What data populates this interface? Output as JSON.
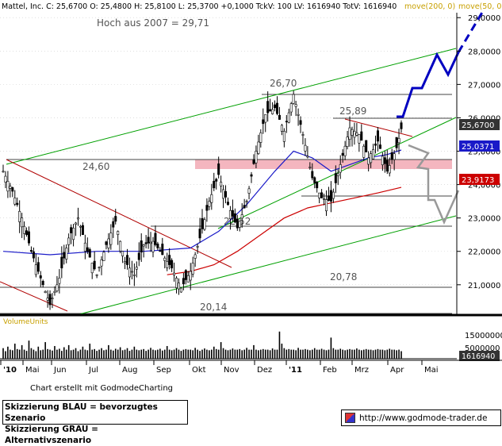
{
  "header": {
    "text": "Mattel, Inc. C: 25,6700 O: 25,4800 H: 25,8100 L: 25,3700 +0,1000 TckV: 100 LV: 1616940 TotV: 1616940",
    "ma_long": "move(200, 0)",
    "ma_short": "move(50, 0)"
  },
  "annotations": {
    "high2007": "Hoch aus 2007  =  29,71",
    "l2670": "26,70",
    "l2589": "25,89",
    "l2460": "24,60",
    "l2252": "22,52",
    "l2078": "20,78",
    "l2014": "20,14"
  },
  "price_badges": {
    "last": "25,6700",
    "ma50": "25,0371",
    "ma200": "23,9173"
  },
  "volume_panel": {
    "label": "VolumeUnits",
    "ticks": [
      "15000000",
      "5000000"
    ],
    "last": "1616940"
  },
  "footer": {
    "credit": "Chart erstellt mit GodmodeCharting",
    "legend_blue": "Skizzierung BLAU = bevorzugtes Szenario",
    "legend_grey": "Skizzierung GRAU = Alternativszenario",
    "url": "http://www.godmode-trader.de"
  },
  "colors": {
    "candle": "#000000",
    "ma50": "#1a1ac8",
    "ma200": "#cc0000",
    "channel": "#00a000",
    "downtrend": "#b00000",
    "resistance_zone": "#f4b6bf",
    "blue_scenario": "#0000c0",
    "grey_scenario": "#999999"
  },
  "chart_data": {
    "type": "candlestick",
    "instrument": "Mattel, Inc.",
    "x_tick_labels": [
      "'10",
      "Mai",
      "Jun",
      "Jul",
      "Aug",
      "Sep",
      "Okt",
      "Nov",
      "Dez",
      "'11",
      "Feb",
      "Mrz",
      "Apr",
      "Mai"
    ],
    "y_tick_labels": [
      "29,0000",
      "28,0000",
      "27,0000",
      "26,0000",
      "25,0000",
      "24,0000",
      "23,0000",
      "22,0000",
      "21,0000"
    ],
    "ylim": [
      20.14,
      29.71
    ],
    "horizontal_levels": [
      29.71,
      26.7,
      25.89,
      24.6,
      23.4,
      22.52,
      20.78,
      20.14
    ],
    "resistance_zone": [
      24.3,
      24.6
    ],
    "last_close": 25.67,
    "ma50_last": 25.0371,
    "ma200_last": 23.9173,
    "volume_last": 1616940,
    "price_path": [
      [
        0,
        24.4
      ],
      [
        4,
        23.8
      ],
      [
        8,
        23.0
      ],
      [
        12,
        22.0
      ],
      [
        16,
        21.2
      ],
      [
        20,
        20.4
      ],
      [
        24,
        21.2
      ],
      [
        28,
        22.4
      ],
      [
        32,
        23.0
      ],
      [
        36,
        22.0
      ],
      [
        40,
        21.3
      ],
      [
        44,
        22.2
      ],
      [
        48,
        22.9
      ],
      [
        52,
        21.7
      ],
      [
        56,
        21.3
      ],
      [
        60,
        22.2
      ],
      [
        64,
        22.3
      ],
      [
        68,
        21.9
      ],
      [
        72,
        21.5
      ],
      [
        76,
        20.9
      ],
      [
        80,
        21.4
      ],
      [
        84,
        22.4
      ],
      [
        88,
        23.5
      ],
      [
        92,
        24.3
      ],
      [
        96,
        23.4
      ],
      [
        100,
        22.7
      ],
      [
        104,
        23.5
      ],
      [
        108,
        25.0
      ],
      [
        112,
        26.1
      ],
      [
        116,
        26.3
      ],
      [
        120,
        25.6
      ],
      [
        124,
        26.7
      ],
      [
        128,
        25.5
      ],
      [
        132,
        24.2
      ],
      [
        136,
        23.6
      ],
      [
        140,
        23.5
      ],
      [
        144,
        24.6
      ],
      [
        148,
        25.7
      ],
      [
        152,
        25.5
      ],
      [
        156,
        24.8
      ],
      [
        160,
        25.3
      ],
      [
        164,
        24.4
      ],
      [
        168,
        25.1
      ],
      [
        170,
        25.67
      ]
    ],
    "ma50_path": [
      [
        0,
        22.0
      ],
      [
        20,
        21.9
      ],
      [
        40,
        22.0
      ],
      [
        60,
        22.0
      ],
      [
        80,
        22.1
      ],
      [
        92,
        22.6
      ],
      [
        104,
        23.4
      ],
      [
        116,
        24.4
      ],
      [
        124,
        25.0
      ],
      [
        132,
        24.8
      ],
      [
        140,
        24.4
      ],
      [
        148,
        24.6
      ],
      [
        156,
        24.8
      ],
      [
        164,
        24.9
      ],
      [
        170,
        25.0371
      ]
    ],
    "ma200_path": [
      [
        70,
        21.3
      ],
      [
        80,
        21.4
      ],
      [
        90,
        21.6
      ],
      [
        100,
        22.0
      ],
      [
        110,
        22.5
      ],
      [
        120,
        23.0
      ],
      [
        130,
        23.3
      ],
      [
        140,
        23.45
      ],
      [
        150,
        23.6
      ],
      [
        160,
        23.75
      ],
      [
        170,
        23.9173
      ]
    ],
    "volume": [
      0.35,
      0.25,
      0.4,
      0.3,
      0.28,
      0.5,
      0.32,
      0.3,
      0.45,
      0.3,
      0.26,
      0.6,
      0.35,
      0.3,
      0.25,
      0.4,
      0.28,
      0.3,
      0.55,
      0.32,
      0.3,
      0.27,
      0.42,
      0.3,
      0.33,
      0.26,
      0.38,
      0.3,
      0.45,
      0.28,
      0.3,
      0.35,
      0.25,
      0.3,
      0.4,
      0.3,
      0.28,
      0.5,
      0.3,
      0.32,
      0.26,
      0.3,
      0.35,
      0.28,
      0.3,
      0.45,
      0.3,
      0.27,
      0.33,
      0.3,
      0.38,
      0.28,
      0.3,
      0.35,
      0.26,
      0.3,
      0.4,
      0.3,
      0.28,
      0.3,
      0.32,
      0.26,
      0.3,
      0.36,
      0.3,
      0.28,
      0.3,
      0.33,
      0.27,
      0.3,
      0.42,
      0.3,
      0.28,
      0.3,
      0.35,
      0.3,
      0.26,
      0.3,
      0.32,
      0.3,
      0.3,
      0.28,
      0.36,
      0.3,
      0.26,
      0.3,
      0.34,
      0.3,
      0.28,
      0.3,
      0.4,
      0.32,
      0.3,
      0.55,
      0.35,
      0.3,
      0.28,
      0.3,
      0.34,
      0.3,
      0.3,
      0.32,
      0.28,
      0.3,
      0.36,
      0.3,
      0.3,
      0.45,
      0.3,
      0.28,
      0.3,
      0.32,
      0.3,
      0.3,
      0.28,
      0.34,
      0.3,
      0.3,
      0.9,
      0.5,
      0.35,
      0.3,
      0.32,
      0.3,
      0.3,
      0.28,
      0.36,
      0.3,
      0.3,
      0.32,
      0.3,
      0.28,
      0.3,
      0.35,
      0.3,
      0.3,
      0.33,
      0.3,
      0.28,
      0.3,
      0.7,
      0.35,
      0.3,
      0.3,
      0.33,
      0.3,
      0.28,
      0.3,
      0.32,
      0.3,
      0.3,
      0.34,
      0.3,
      0.28,
      0.3,
      0.32,
      0.3,
      0.3,
      0.28,
      0.3,
      0.32,
      0.3,
      0.3,
      0.28,
      0.3,
      0.33,
      0.3,
      0.3,
      0.28,
      0.3,
      0.25
    ]
  }
}
